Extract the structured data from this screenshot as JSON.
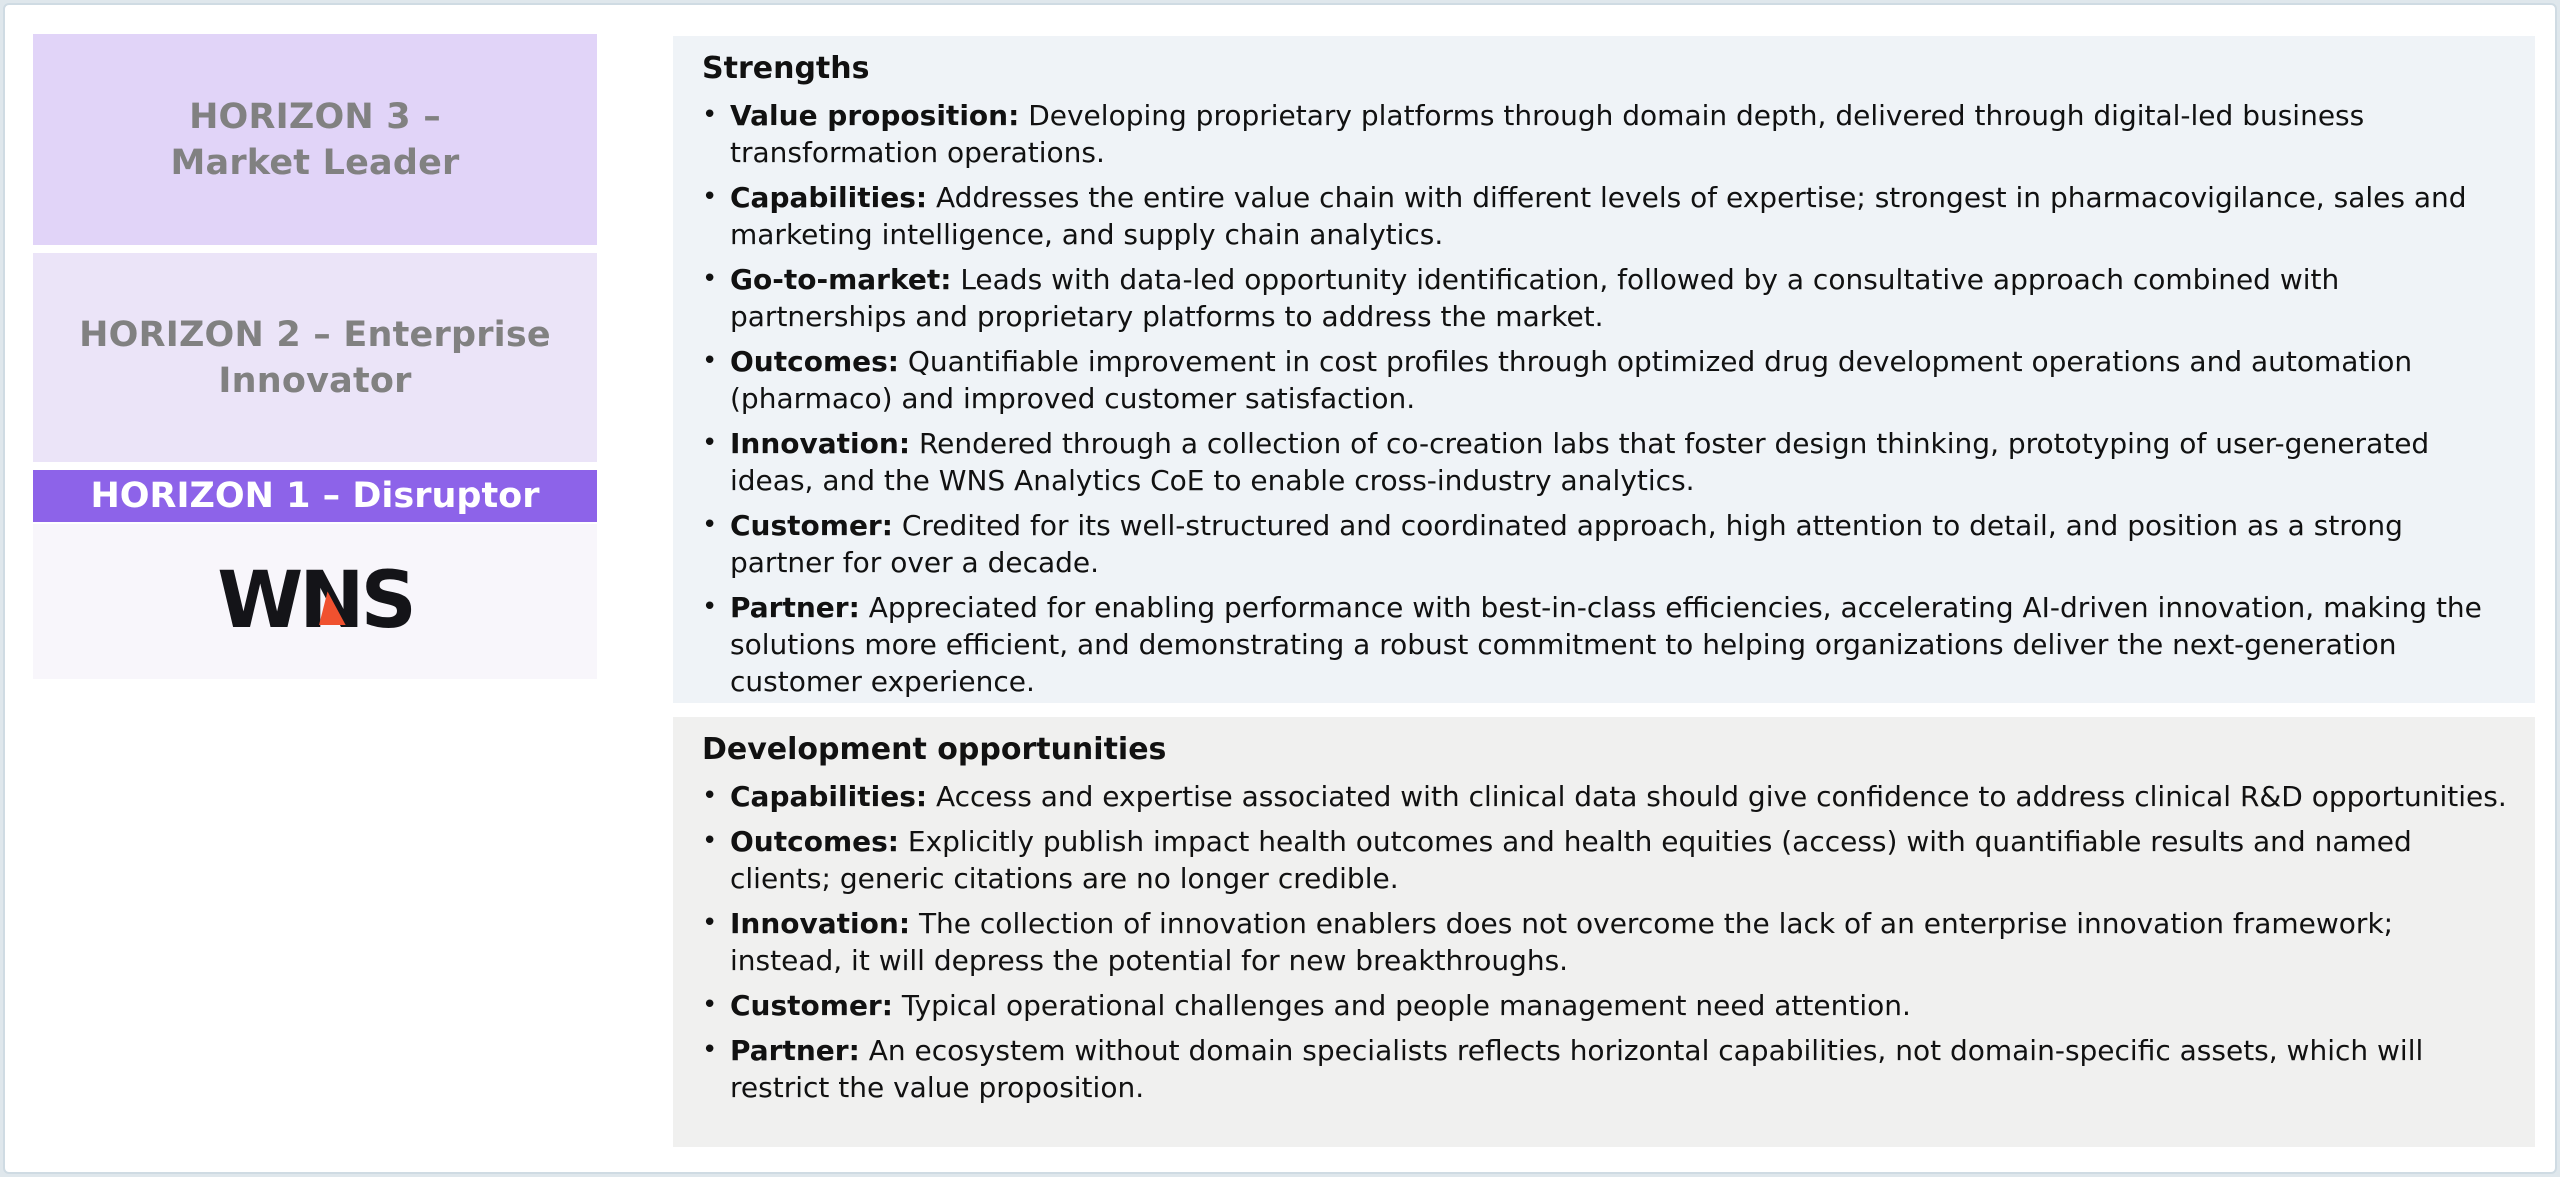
{
  "colors": {
    "page_border": "#cfdbe3",
    "page_background": "#ffffff",
    "horizon3_bg": "#e1d4f8",
    "horizon2_bg": "#ebe4f8",
    "horizon1_bg": "#8d63e9",
    "wns_panel_bg": "#f8f6fb",
    "horizon_text_gray": "#818181",
    "horizon1_text": "#ffffff",
    "strengths_panel_bg": "#eff3f7",
    "development_panel_bg": "#f0f0ef",
    "body_text": "#111111",
    "logo_black": "#141418",
    "logo_accent_orange": "#f0512f"
  },
  "glyphs": {
    "bullet": "•"
  },
  "left_panel": {
    "horizon3": {
      "lines": [
        "HORIZON 3 –",
        "Market Leader"
      ]
    },
    "horizon2": {
      "lines": [
        "HORIZON 2 – Enterprise",
        "Innovator"
      ]
    },
    "horizon1": {
      "label": "HORIZON 1 – Disruptor"
    },
    "logo_text": "WNS"
  },
  "strengths": {
    "title": "Strengths",
    "bullets": [
      {
        "term": "Value proposition:",
        "text": "Developing proprietary platforms through domain depth, delivered through digital-led business transformation operations."
      },
      {
        "term": "Capabilities:",
        "text": "Addresses the entire value chain with different levels of expertise; strongest in pharmacovigilance, sales and marketing intelligence, and supply chain analytics."
      },
      {
        "term": "Go-to-market:",
        "text": "Leads with data-led opportunity identification, followed by a consultative approach combined with partnerships and proprietary platforms to address the market."
      },
      {
        "term": "Outcomes:",
        "text": "Quantifiable improvement in cost profiles through optimized drug development operations and automation (pharmaco) and improved customer satisfaction."
      },
      {
        "term": "Innovation:",
        "text": "Rendered through a collection of co-creation labs that foster design thinking, prototyping of user-generated ideas, and the WNS Analytics CoE to enable cross-industry analytics."
      },
      {
        "term": "Customer:",
        "text": "Credited for its well-structured and coordinated approach, high attention to detail, and position as a strong partner for over a decade."
      },
      {
        "term": "Partner:",
        "text": "Appreciated for enabling performance with best-in-class efficiencies, accelerating AI-driven innovation, making the solutions more efficient, and demonstrating a robust commitment to helping organizations deliver the next-generation customer experience."
      }
    ]
  },
  "development": {
    "title": "Development opportunities",
    "bullets": [
      {
        "term": "Capabilities:",
        "text": "Access and expertise associated with clinical data should give confidence to address clinical R&D opportunities."
      },
      {
        "term": "Outcomes:",
        "text": "Explicitly publish impact health outcomes and health equities (access) with quantifiable results and named clients; generic citations are no longer credible."
      },
      {
        "term": "Innovation:",
        "text": "The collection of innovation enablers does not overcome the lack of an enterprise innovation framework; instead, it will depress the potential for new breakthroughs."
      },
      {
        "term": "Customer:",
        "text": "Typical operational challenges and people management need attention."
      },
      {
        "term": "Partner:",
        "text": "An ecosystem without domain specialists reflects horizontal capabilities, not domain-specific assets, which will restrict the value proposition."
      }
    ]
  }
}
